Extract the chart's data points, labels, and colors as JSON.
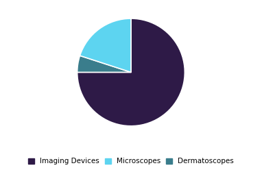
{
  "labels": [
    "Imaging Devices",
    "Dermatoscopes",
    "Microscopes"
  ],
  "sizes": [
    75,
    5,
    20
  ],
  "colors": [
    "#2e1a47",
    "#3a7d8c",
    "#5dd4f0"
  ],
  "startangle": 90,
  "legend_order": [
    0,
    2,
    1
  ],
  "legend_labels": [
    "Imaging Devices",
    "Microscopes",
    "Dermatoscopes"
  ],
  "legend_colors": [
    "#2e1a47",
    "#5dd4f0",
    "#3a7d8c"
  ],
  "legend_fontsize": 7.5,
  "background_color": "#ffffff",
  "wedge_edge_color": "#ffffff",
  "wedge_linewidth": 1.2
}
